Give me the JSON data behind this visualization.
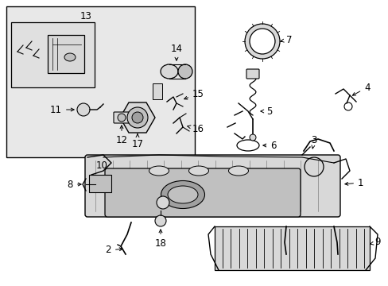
{
  "figsize": [
    4.89,
    3.6
  ],
  "dpi": 100,
  "bg": "#ffffff",
  "lc": "#000000",
  "gray_light": "#d8d8d8",
  "gray_mid": "#c0c0c0",
  "gray_dark": "#a0a0a0",
  "gray_inset": "#e8e8e8",
  "font_size": 8.5
}
